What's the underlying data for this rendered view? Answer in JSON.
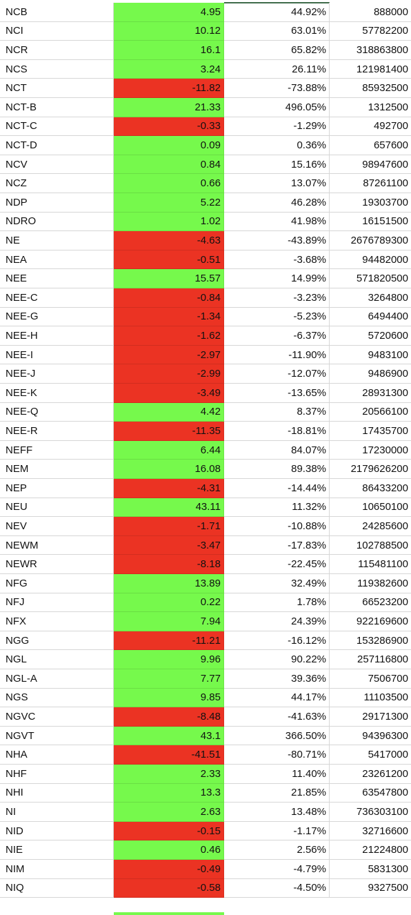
{
  "sheet": {
    "colors": {
      "positive": "#76f94c",
      "negative": "#eb3323",
      "grid": "#d6d6d6",
      "selection_edge": "#3f6b4a"
    },
    "rows": [
      {
        "ticker": "NCB",
        "change": "4.95",
        "pct": "44.92%",
        "volume": "888000",
        "sign": "pos"
      },
      {
        "ticker": "NCI",
        "change": "10.12",
        "pct": "63.01%",
        "volume": "57782200",
        "sign": "pos"
      },
      {
        "ticker": "NCR",
        "change": "16.1",
        "pct": "65.82%",
        "volume": "318863800",
        "sign": "pos"
      },
      {
        "ticker": "NCS",
        "change": "3.24",
        "pct": "26.11%",
        "volume": "121981400",
        "sign": "pos"
      },
      {
        "ticker": "NCT",
        "change": "-11.82",
        "pct": "-73.88%",
        "volume": "85932500",
        "sign": "neg"
      },
      {
        "ticker": "NCT-B",
        "change": "21.33",
        "pct": "496.05%",
        "volume": "1312500",
        "sign": "pos"
      },
      {
        "ticker": "NCT-C",
        "change": "-0.33",
        "pct": "-1.29%",
        "volume": "492700",
        "sign": "neg"
      },
      {
        "ticker": "NCT-D",
        "change": "0.09",
        "pct": "0.36%",
        "volume": "657600",
        "sign": "pos"
      },
      {
        "ticker": "NCV",
        "change": "0.84",
        "pct": "15.16%",
        "volume": "98947600",
        "sign": "pos"
      },
      {
        "ticker": "NCZ",
        "change": "0.66",
        "pct": "13.07%",
        "volume": "87261100",
        "sign": "pos"
      },
      {
        "ticker": "NDP",
        "change": "5.22",
        "pct": "46.28%",
        "volume": "19303700",
        "sign": "pos"
      },
      {
        "ticker": "NDRO",
        "change": "1.02",
        "pct": "41.98%",
        "volume": "16151500",
        "sign": "pos"
      },
      {
        "ticker": "NE",
        "change": "-4.63",
        "pct": "-43.89%",
        "volume": "2676789300",
        "sign": "neg"
      },
      {
        "ticker": "NEA",
        "change": "-0.51",
        "pct": "-3.68%",
        "volume": "94482000",
        "sign": "neg"
      },
      {
        "ticker": "NEE",
        "change": "15.57",
        "pct": "14.99%",
        "volume": "571820500",
        "sign": "pos"
      },
      {
        "ticker": "NEE-C",
        "change": "-0.84",
        "pct": "-3.23%",
        "volume": "3264800",
        "sign": "neg"
      },
      {
        "ticker": "NEE-G",
        "change": "-1.34",
        "pct": "-5.23%",
        "volume": "6494400",
        "sign": "neg"
      },
      {
        "ticker": "NEE-H",
        "change": "-1.62",
        "pct": "-6.37%",
        "volume": "5720600",
        "sign": "neg"
      },
      {
        "ticker": "NEE-I",
        "change": "-2.97",
        "pct": "-11.90%",
        "volume": "9483100",
        "sign": "neg"
      },
      {
        "ticker": "NEE-J",
        "change": "-2.99",
        "pct": "-12.07%",
        "volume": "9486900",
        "sign": "neg"
      },
      {
        "ticker": "NEE-K",
        "change": "-3.49",
        "pct": "-13.65%",
        "volume": "28931300",
        "sign": "neg"
      },
      {
        "ticker": "NEE-Q",
        "change": "4.42",
        "pct": "8.37%",
        "volume": "20566100",
        "sign": "pos"
      },
      {
        "ticker": "NEE-R",
        "change": "-11.35",
        "pct": "-18.81%",
        "volume": "17435700",
        "sign": "neg"
      },
      {
        "ticker": "NEFF",
        "change": "6.44",
        "pct": "84.07%",
        "volume": "17230000",
        "sign": "pos"
      },
      {
        "ticker": "NEM",
        "change": "16.08",
        "pct": "89.38%",
        "volume": "2179626200",
        "sign": "pos"
      },
      {
        "ticker": "NEP",
        "change": "-4.31",
        "pct": "-14.44%",
        "volume": "86433200",
        "sign": "neg"
      },
      {
        "ticker": "NEU",
        "change": "43.11",
        "pct": "11.32%",
        "volume": "10650100",
        "sign": "pos"
      },
      {
        "ticker": "NEV",
        "change": "-1.71",
        "pct": "-10.88%",
        "volume": "24285600",
        "sign": "neg"
      },
      {
        "ticker": "NEWM",
        "change": "-3.47",
        "pct": "-17.83%",
        "volume": "102788500",
        "sign": "neg"
      },
      {
        "ticker": "NEWR",
        "change": "-8.18",
        "pct": "-22.45%",
        "volume": "115481100",
        "sign": "neg"
      },
      {
        "ticker": "NFG",
        "change": "13.89",
        "pct": "32.49%",
        "volume": "119382600",
        "sign": "pos"
      },
      {
        "ticker": "NFJ",
        "change": "0.22",
        "pct": "1.78%",
        "volume": "66523200",
        "sign": "pos"
      },
      {
        "ticker": "NFX",
        "change": "7.94",
        "pct": "24.39%",
        "volume": "922169600",
        "sign": "pos"
      },
      {
        "ticker": "NGG",
        "change": "-11.21",
        "pct": "-16.12%",
        "volume": "153286900",
        "sign": "neg"
      },
      {
        "ticker": "NGL",
        "change": "9.96",
        "pct": "90.22%",
        "volume": "257116800",
        "sign": "pos"
      },
      {
        "ticker": "NGL-A",
        "change": "7.77",
        "pct": "39.36%",
        "volume": "7506700",
        "sign": "pos"
      },
      {
        "ticker": "NGS",
        "change": "9.85",
        "pct": "44.17%",
        "volume": "11103500",
        "sign": "pos"
      },
      {
        "ticker": "NGVC",
        "change": "-8.48",
        "pct": "-41.63%",
        "volume": "29171300",
        "sign": "neg"
      },
      {
        "ticker": "NGVT",
        "change": "43.1",
        "pct": "366.50%",
        "volume": "94396300",
        "sign": "pos"
      },
      {
        "ticker": "NHA",
        "change": "-41.51",
        "pct": "-80.71%",
        "volume": "5417000",
        "sign": "neg"
      },
      {
        "ticker": "NHF",
        "change": "2.33",
        "pct": "11.40%",
        "volume": "23261200",
        "sign": "pos"
      },
      {
        "ticker": "NHI",
        "change": "13.3",
        "pct": "21.85%",
        "volume": "63547800",
        "sign": "pos"
      },
      {
        "ticker": "NI",
        "change": "2.63",
        "pct": "13.48%",
        "volume": "736303100",
        "sign": "pos"
      },
      {
        "ticker": "NID",
        "change": "-0.15",
        "pct": "-1.17%",
        "volume": "32716600",
        "sign": "neg"
      },
      {
        "ticker": "NIE",
        "change": "0.46",
        "pct": "2.56%",
        "volume": "21224800",
        "sign": "pos"
      },
      {
        "ticker": "NIM",
        "change": "-0.49",
        "pct": "-4.79%",
        "volume": "5831300",
        "sign": "neg"
      },
      {
        "ticker": "NIQ",
        "change": "-0.58",
        "pct": "-4.50%",
        "volume": "9327500",
        "sign": "neg"
      }
    ]
  }
}
